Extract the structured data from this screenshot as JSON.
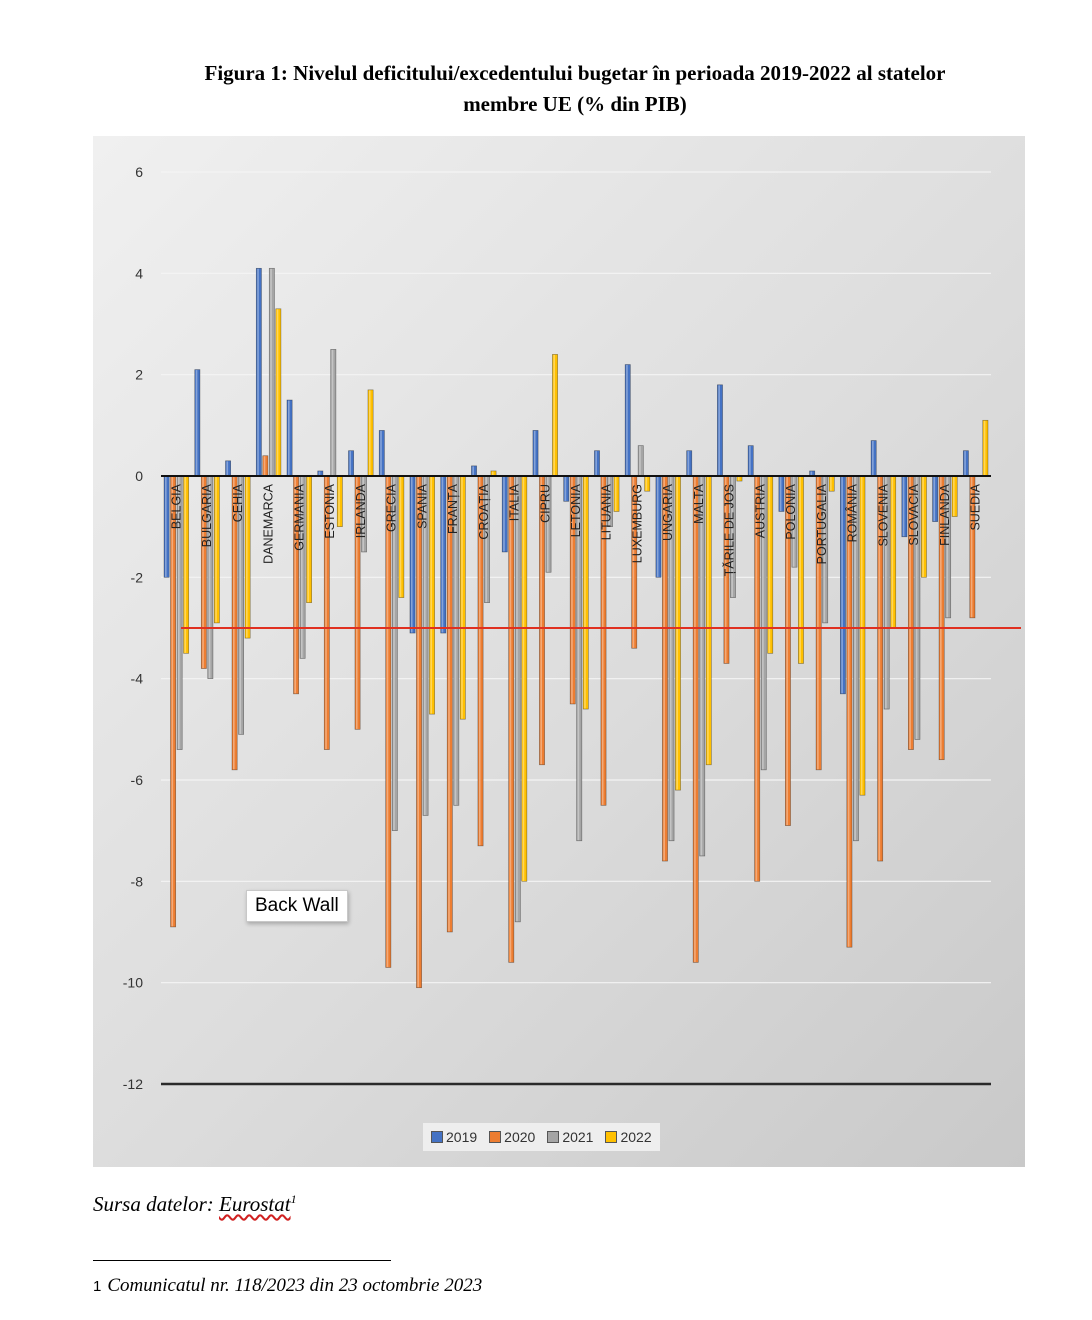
{
  "header": {
    "title_line1": "Figura 1: Nivelul deficitului/excedentului bugetar în perioada 2019-2022 al statelor",
    "title_line2": "membre UE (% din PIB)"
  },
  "chart_label_overlay": "Back Wall",
  "source": {
    "prefix": "Sursa datelor: ",
    "link": "Eurostat",
    "sup": "1"
  },
  "footnote": {
    "marker": "1",
    "text": "Comunicatul nr. 118/2023 din 23 octombrie 2023"
  },
  "colors": {
    "2019": "#4472C4",
    "2020": "#ED7D31",
    "2021": "#A5A5A5",
    "2022": "#FFC000",
    "threshold": "#E03020"
  },
  "chart_data": {
    "type": "bar",
    "title": "",
    "xlabel": "",
    "ylabel": "",
    "ylim": [
      -12,
      6
    ],
    "yticks": [
      6,
      4,
      2,
      0,
      -2,
      -4,
      -6,
      -8,
      -10,
      -12
    ],
    "grid": true,
    "legend_position": "bottom",
    "reference_line": -3,
    "categories": [
      "BELGIA",
      "BULGARIA",
      "CEHIA",
      "DANEMARCA",
      "GERMANIA",
      "ESTONIA",
      "IRLANDA",
      "GRECIA",
      "SPANIA",
      "FRANȚA",
      "CROAȚIA",
      "ITALIA",
      "CIPRU",
      "LETONIA",
      "LITUANIA",
      "LUXEMBURG",
      "UNGARIA",
      "MALTA",
      "ȚĂRILE DE JOS",
      "AUSTRIA",
      "POLONIA",
      "PORTUGALIA",
      "ROMÂNIA",
      "SLOVENIA",
      "SLOVACIA",
      "FINLANDA",
      "SUEDIA"
    ],
    "series": [
      {
        "name": "2019",
        "values": [
          -2.0,
          2.1,
          0.3,
          4.1,
          1.5,
          0.1,
          0.5,
          0.9,
          -3.1,
          -3.1,
          0.2,
          -1.5,
          0.9,
          -0.5,
          0.5,
          2.2,
          -2.0,
          0.5,
          1.8,
          0.6,
          -0.7,
          0.1,
          -4.3,
          0.7,
          -1.2,
          -0.9,
          0.5
        ]
      },
      {
        "name": "2020",
        "values": [
          -8.9,
          -3.8,
          -5.8,
          0.4,
          -4.3,
          -5.4,
          -5.0,
          -9.7,
          -10.1,
          -9.0,
          -7.3,
          -9.6,
          -5.7,
          -4.5,
          -6.5,
          -3.4,
          -7.6,
          -9.6,
          -3.7,
          -8.0,
          -6.9,
          -5.8,
          -9.3,
          -7.6,
          -5.4,
          -5.6,
          -2.8
        ]
      },
      {
        "name": "2021",
        "values": [
          -5.4,
          -4.0,
          -5.1,
          4.1,
          -3.6,
          2.5,
          -1.5,
          -7.0,
          -6.7,
          -6.5,
          -2.5,
          -8.8,
          -1.9,
          -7.2,
          -1.0,
          0.6,
          -7.2,
          -7.5,
          -2.4,
          -5.8,
          -1.8,
          -2.9,
          -7.2,
          -4.6,
          -5.2,
          -2.8,
          0.0
        ]
      },
      {
        "name": "2022",
        "values": [
          -3.5,
          -2.9,
          -3.2,
          3.3,
          -2.5,
          -1.0,
          1.7,
          -2.4,
          -4.7,
          -4.8,
          0.1,
          -8.0,
          2.4,
          -4.6,
          -0.7,
          -0.3,
          -6.2,
          -5.7,
          -0.1,
          -3.5,
          -3.7,
          -0.3,
          -6.3,
          -3.0,
          -2.0,
          -0.8,
          1.1
        ]
      }
    ]
  }
}
